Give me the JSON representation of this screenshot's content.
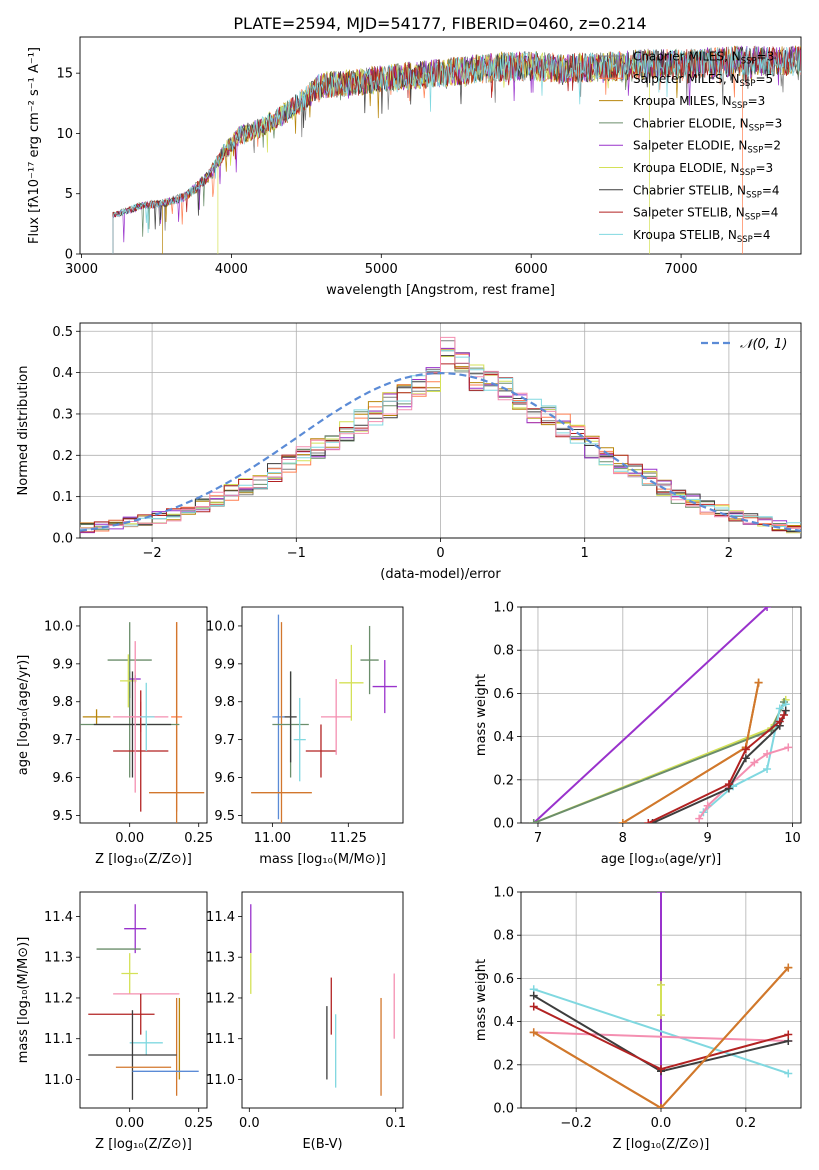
{
  "title": "PLATE=2594, MJD=54177, FIBERID=0460, z=0.214",
  "colors": {
    "chabrier_miles": "#7f7f7f",
    "salpeter_miles": "#ff7f50",
    "kroupa_miles": "#b8860b",
    "chabrier_elodie": "#6b8e6b",
    "salpeter_elodie": "#9932cc",
    "kroupa_elodie": "#d4e157",
    "chabrier_stelib": "#3d3d3d",
    "salpeter_stelib": "#b22222",
    "kroupa_stelib": "#80d8e0",
    "pink": "#f48fb1",
    "orange": "#d2772d",
    "gauss": "#5b8bd6"
  },
  "chart_data": [
    {
      "type": "line",
      "panel": "spectrum",
      "xlabel": "wavelength [Angstrom, rest frame]",
      "ylabel": "Flux [fλ10⁻¹⁷ erg cm⁻² s⁻¹ A⁻¹]",
      "xlim": [
        2990,
        7800
      ],
      "ylim": [
        0,
        18
      ],
      "xticks": [
        "3000",
        "4000",
        "5000",
        "6000",
        "7000"
      ],
      "yticks": [
        "0",
        "5",
        "10",
        "15"
      ],
      "legend": [
        {
          "label": "Chabrier MILES, N",
          "sub": "SSP",
          "suffix": "=3",
          "color": "#7f7f7f"
        },
        {
          "label": "Salpeter MILES, N",
          "sub": "SSP",
          "suffix": "=5",
          "color": "#ff7f50"
        },
        {
          "label": "Kroupa MILES, N",
          "sub": "SSP",
          "suffix": "=3",
          "color": "#b8860b"
        },
        {
          "label": "Chabrier ELODIE, N",
          "sub": "SSP",
          "suffix": "=3",
          "color": "#6b8e6b"
        },
        {
          "label": "Salpeter ELODIE, N",
          "sub": "SSP",
          "suffix": "=2",
          "color": "#9932cc"
        },
        {
          "label": "Kroupa ELODIE, N",
          "sub": "SSP",
          "suffix": "=3",
          "color": "#d4e157"
        },
        {
          "label": "Chabrier STELIB, N",
          "sub": "SSP",
          "suffix": "=4",
          "color": "#3d3d3d"
        },
        {
          "label": "Salpeter STELIB, N",
          "sub": "SSP",
          "suffix": "=4",
          "color": "#b22222"
        },
        {
          "label": "Kroupa STELIB, N",
          "sub": "SSP",
          "suffix": "=4",
          "color": "#80d8e0"
        }
      ],
      "continuum": [
        [
          3210,
          3.2
        ],
        [
          3400,
          4.0
        ],
        [
          3550,
          4.2
        ],
        [
          3700,
          4.8
        ],
        [
          3850,
          6.5
        ],
        [
          3950,
          8.5
        ],
        [
          4050,
          9.8
        ],
        [
          4200,
          10.5
        ],
        [
          4400,
          12.0
        ],
        [
          4600,
          14.0
        ],
        [
          4800,
          14.2
        ],
        [
          5000,
          14.5
        ],
        [
          5200,
          14.8
        ],
        [
          5400,
          15.0
        ],
        [
          5600,
          15.3
        ],
        [
          5800,
          15.5
        ],
        [
          6000,
          15.6
        ],
        [
          6200,
          15.4
        ],
        [
          6400,
          15.5
        ],
        [
          6600,
          15.6
        ],
        [
          6800,
          15.8
        ],
        [
          7000,
          15.7
        ],
        [
          7200,
          15.9
        ],
        [
          7400,
          16.0
        ],
        [
          7800,
          16.0
        ]
      ],
      "starts": [
        3210,
        3210,
        3540,
        3210,
        3210,
        3910,
        3210,
        3210,
        3210
      ],
      "ends": [
        7800,
        7410,
        7800,
        7800,
        7800,
        6790,
        7800,
        7800,
        7800
      ]
    },
    {
      "type": "line",
      "panel": "residual_histogram",
      "xlabel": "(data-model)/error",
      "ylabel": "Normed distribution",
      "xlim": [
        -2.5,
        2.5
      ],
      "ylim": [
        0,
        0.52
      ],
      "xticks": [
        "−2",
        "−1",
        "0",
        "1",
        "2"
      ],
      "yticks": [
        "0.0",
        "0.1",
        "0.2",
        "0.3",
        "0.4",
        "0.5"
      ],
      "legend": [
        {
          "label": "𝒩(0, 1)",
          "color": "#5b8bd6"
        }
      ],
      "bins_min": -2.5,
      "bin_width": 0.1,
      "base_values": [
        0.025,
        0.027,
        0.032,
        0.038,
        0.044,
        0.05,
        0.057,
        0.068,
        0.08,
        0.095,
        0.11,
        0.125,
        0.14,
        0.16,
        0.18,
        0.195,
        0.215,
        0.235,
        0.255,
        0.28,
        0.3,
        0.32,
        0.34,
        0.36,
        0.385,
        0.45,
        0.42,
        0.39,
        0.37,
        0.36,
        0.33,
        0.31,
        0.29,
        0.27,
        0.25,
        0.22,
        0.2,
        0.18,
        0.16,
        0.145,
        0.12,
        0.1,
        0.09,
        0.075,
        0.065,
        0.055,
        0.045,
        0.038,
        0.03,
        0.025
      ]
    },
    {
      "type": "scatter",
      "panel": "age_vs_Z",
      "xlabel": "Z [log₁₀(Z/Z⊙)]",
      "ylabel": "age  [log₁₀(age/yr)]",
      "xlim": [
        -0.18,
        0.28
      ],
      "ylim": [
        9.48,
        10.05
      ],
      "xticks": [
        "0.00",
        "0.25"
      ],
      "yticks": [
        "9.5",
        "9.6",
        "9.7",
        "9.8",
        "9.9",
        "10.0"
      ],
      "points": [
        {
          "x": -0.12,
          "xerr": 0.05,
          "y": 9.76,
          "yerr": 0.02,
          "color": "#b8860b"
        },
        {
          "x": 0.0,
          "xerr": 0.08,
          "y": 9.91,
          "yerr": 0.1,
          "color": "#6b8e6b"
        },
        {
          "x": 0.17,
          "xerr": 0.02,
          "y": 9.76,
          "yerr": 0.25,
          "color": "#ff7f50"
        },
        {
          "x": 0.17,
          "xerr": 0.1,
          "y": 9.56,
          "yerr": 0.45,
          "color": "#d2772d"
        },
        {
          "x": 0.0,
          "xerr": 0.18,
          "y": 9.74,
          "yerr": 0.14,
          "color": "#6b8e6b"
        },
        {
          "x": 0.02,
          "xerr": 0.02,
          "y": 9.86,
          "yerr": 0.01,
          "color": "#9932cc"
        },
        {
          "x": -0.005,
          "xerr": 0.03,
          "y": 9.855,
          "yerr": 0.07,
          "color": "#d4e157"
        },
        {
          "x": 0.01,
          "xerr": 0.14,
          "y": 9.74,
          "yerr": 0.14,
          "color": "#3d3d3d"
        },
        {
          "x": 0.04,
          "xerr": 0.1,
          "y": 9.76,
          "yerr": 0.04,
          "color": "#f48fb1"
        },
        {
          "x": 0.04,
          "xerr": 0.1,
          "y": 9.67,
          "yerr": 0.16,
          "color": "#b22222"
        },
        {
          "x": 0.06,
          "xerr": 0.03,
          "y": 9.76,
          "yerr": 0.09,
          "color": "#80d8e0"
        },
        {
          "x": 0.02,
          "xerr": 0.02,
          "y": 9.76,
          "yerr": 0.2,
          "color": "#f48fb1"
        }
      ]
    },
    {
      "type": "scatter",
      "panel": "age_vs_mass",
      "xlabel": "mass [log₁₀(M/M⊙)]",
      "xlim": [
        10.9,
        11.43
      ],
      "ylim": [
        9.48,
        10.05
      ],
      "xticks": [
        "11.00",
        "11.25"
      ],
      "yticks": [
        "9.5",
        "9.6",
        "9.7",
        "9.8",
        "9.9",
        "10.0"
      ],
      "points": [
        {
          "x": 11.02,
          "xerr": 0.02,
          "y": 9.76,
          "yerr": 0.27,
          "color": "#5b8bd6"
        },
        {
          "x": 11.03,
          "xerr": 0.1,
          "y": 9.56,
          "yerr": 0.45,
          "color": "#d2772d"
        },
        {
          "x": 11.06,
          "xerr": 0.06,
          "y": 9.74,
          "yerr": 0.14,
          "color": "#6b8e6b"
        },
        {
          "x": 11.06,
          "xerr": 0.02,
          "y": 9.76,
          "yerr": 0.12,
          "color": "#3d3d3d"
        },
        {
          "x": 11.09,
          "xerr": 0.02,
          "y": 9.7,
          "yerr": 0.11,
          "color": "#80d8e0"
        },
        {
          "x": 11.16,
          "xerr": 0.05,
          "y": 9.67,
          "yerr": 0.07,
          "color": "#b22222"
        },
        {
          "x": 11.21,
          "xerr": 0.05,
          "y": 9.76,
          "yerr": 0.1,
          "color": "#f48fb1"
        },
        {
          "x": 11.26,
          "xerr": 0.04,
          "y": 9.85,
          "yerr": 0.1,
          "color": "#d4e157"
        },
        {
          "x": 11.32,
          "xerr": 0.03,
          "y": 9.91,
          "yerr": 0.09,
          "color": "#6b8e6b"
        },
        {
          "x": 11.37,
          "xerr": 0.04,
          "y": 9.84,
          "yerr": 0.07,
          "color": "#9932cc"
        }
      ]
    },
    {
      "type": "line",
      "panel": "mass_weight_vs_age",
      "xlabel": "age  [log₁₀(age/yr)]",
      "ylabel": "mass weight",
      "xlim": [
        6.8,
        10.1
      ],
      "ylim": [
        0,
        1.0
      ],
      "xticks": [
        "7",
        "8",
        "9",
        "10"
      ],
      "yticks": [
        "0.0",
        "0.2",
        "0.4",
        "0.6",
        "0.8",
        "1.0"
      ],
      "series": [
        {
          "color": "#9932cc",
          "x": [
            6.95,
            9.7
          ],
          "y": [
            0.0,
            1.0
          ]
        },
        {
          "color": "#d4e157",
          "x": [
            6.95,
            9.75,
            9.92
          ],
          "y": [
            0.0,
            0.44,
            0.57
          ]
        },
        {
          "color": "#6b8e6b",
          "x": [
            6.95,
            9.75,
            9.9
          ],
          "y": [
            0.0,
            0.43,
            0.56
          ]
        },
        {
          "color": "#b8860b",
          "x": [
            8.0,
            9.45,
            9.6
          ],
          "y": [
            0.0,
            0.35,
            0.65
          ]
        },
        {
          "color": "#d2772d",
          "x": [
            8.0,
            9.45,
            9.6
          ],
          "y": [
            0.0,
            0.35,
            0.65
          ]
        },
        {
          "color": "#80d8e0",
          "x": [
            8.95,
            9.3,
            9.7,
            9.85,
            9.92
          ],
          "y": [
            0.05,
            0.17,
            0.25,
            0.53,
            0.55
          ]
        },
        {
          "color": "#f48fb1",
          "x": [
            8.9,
            9.0,
            9.55,
            9.7,
            9.95
          ],
          "y": [
            0.02,
            0.08,
            0.28,
            0.32,
            0.35
          ]
        },
        {
          "color": "#3d3d3d",
          "x": [
            8.35,
            9.25,
            9.45,
            9.85,
            9.92
          ],
          "y": [
            0.0,
            0.16,
            0.3,
            0.45,
            0.52
          ]
        },
        {
          "color": "#b22222",
          "x": [
            8.3,
            9.25,
            9.45,
            9.85,
            9.9
          ],
          "y": [
            0.0,
            0.18,
            0.34,
            0.47,
            0.5
          ]
        }
      ]
    },
    {
      "type": "scatter",
      "panel": "mass_vs_Z",
      "xlabel": "Z [log₁₀(Z/Z⊙)]",
      "ylabel": "mass [log₁₀(M/M⊙)]",
      "xlim": [
        -0.18,
        0.28
      ],
      "ylim": [
        10.93,
        11.46
      ],
      "xticks": [
        "0.00",
        "0.25"
      ],
      "yticks": [
        "11.0",
        "11.1",
        "11.2",
        "11.3",
        "11.4"
      ],
      "points": [
        {
          "x": 0.02,
          "xerr": 0.04,
          "y": 11.37,
          "yerr": 0.06,
          "color": "#9932cc"
        },
        {
          "x": -0.04,
          "xerr": 0.08,
          "y": 11.32,
          "yerr": 0.0,
          "color": "#6b8e6b"
        },
        {
          "x": 0.0,
          "xerr": 0.03,
          "y": 11.26,
          "yerr": 0.05,
          "color": "#d4e157"
        },
        {
          "x": 0.06,
          "xerr": 0.12,
          "y": 11.21,
          "yerr": 0.0,
          "color": "#f48fb1"
        },
        {
          "x": -0.03,
          "xerr": 0.12,
          "y": 11.16,
          "yerr": 0.0,
          "color": "#b22222"
        },
        {
          "x": 0.04,
          "xerr": 0.0,
          "y": 11.16,
          "yerr": 0.05,
          "color": "#b22222"
        },
        {
          "x": 0.17,
          "xerr": 0.0,
          "y": 11.08,
          "yerr": 0.12,
          "color": "#d2772d"
        },
        {
          "x": 0.18,
          "xerr": 0.0,
          "y": 11.1,
          "yerr": 0.1,
          "color": "#b8860b"
        },
        {
          "x": 0.06,
          "xerr": 0.06,
          "y": 11.09,
          "yerr": 0.03,
          "color": "#80d8e0"
        },
        {
          "x": 0.01,
          "xerr": 0.16,
          "y": 11.06,
          "yerr": 0.11,
          "color": "#3d3d3d"
        },
        {
          "x": 0.05,
          "xerr": 0.1,
          "y": 11.03,
          "yerr": 0.0,
          "color": "#d2772d"
        },
        {
          "x": 0.13,
          "xerr": 0.12,
          "y": 11.02,
          "yerr": 0.0,
          "color": "#5b8bd6"
        }
      ]
    },
    {
      "type": "scatter",
      "panel": "mass_vs_ebv",
      "xlabel": "E(B-V)",
      "xlim": [
        -0.005,
        0.105
      ],
      "ylim": [
        10.93,
        11.46
      ],
      "xticks": [
        "0.0",
        "0.1"
      ],
      "yticks": [
        "11.0",
        "11.1",
        "11.2",
        "11.3",
        "11.4"
      ],
      "points": [
        {
          "x": 0.001,
          "xerr": 0.0,
          "y": 11.37,
          "yerr": 0.06,
          "color": "#9932cc"
        },
        {
          "x": 0.001,
          "xerr": 0.0,
          "y": 11.26,
          "yerr": 0.05,
          "color": "#d4e157"
        },
        {
          "x": 0.053,
          "xerr": 0.0,
          "y": 11.09,
          "yerr": 0.09,
          "color": "#3d3d3d"
        },
        {
          "x": 0.056,
          "xerr": 0.0,
          "y": 11.18,
          "yerr": 0.07,
          "color": "#b22222"
        },
        {
          "x": 0.059,
          "xerr": 0.0,
          "y": 11.07,
          "yerr": 0.09,
          "color": "#80d8e0"
        },
        {
          "x": 0.09,
          "xerr": 0.0,
          "y": 11.08,
          "yerr": 0.12,
          "color": "#d2772d"
        },
        {
          "x": 0.099,
          "xerr": 0.0,
          "y": 11.18,
          "yerr": 0.08,
          "color": "#f48fb1"
        }
      ]
    },
    {
      "type": "line",
      "panel": "mass_weight_vs_Z",
      "xlabel": "Z [log₁₀(Z/Z⊙)]",
      "ylabel": "mass weight",
      "xlim": [
        -0.33,
        0.33
      ],
      "ylim": [
        0,
        1.0
      ],
      "xticks": [
        "−0.2",
        "0.0",
        "0.2"
      ],
      "yticks": [
        "0.0",
        "0.2",
        "0.4",
        "0.6",
        "0.8",
        "1.0"
      ],
      "series": [
        {
          "color": "#9932cc",
          "x": [
            0.0,
            0.0
          ],
          "y": [
            0.0,
            1.0
          ]
        },
        {
          "color": "#d4e157",
          "x": [
            0.0,
            0.0
          ],
          "y": [
            0.43,
            0.57
          ]
        },
        {
          "color": "#80d8e0",
          "x": [
            -0.3,
            0.3
          ],
          "y": [
            0.55,
            0.16
          ]
        },
        {
          "color": "#f48fb1",
          "x": [
            -0.3,
            0.3
          ],
          "y": [
            0.35,
            0.31
          ]
        },
        {
          "color": "#3d3d3d",
          "x": [
            -0.3,
            0.0,
            0.3
          ],
          "y": [
            0.52,
            0.17,
            0.31
          ]
        },
        {
          "color": "#b22222",
          "x": [
            -0.3,
            0.0,
            0.3
          ],
          "y": [
            0.47,
            0.18,
            0.34
          ]
        },
        {
          "color": "#b8860b",
          "x": [
            -0.3,
            0.0,
            0.3
          ],
          "y": [
            0.35,
            0.0,
            0.65
          ]
        },
        {
          "color": "#d2772d",
          "x": [
            -0.3,
            0.0,
            0.3
          ],
          "y": [
            0.35,
            0.0,
            0.65
          ]
        }
      ]
    }
  ]
}
